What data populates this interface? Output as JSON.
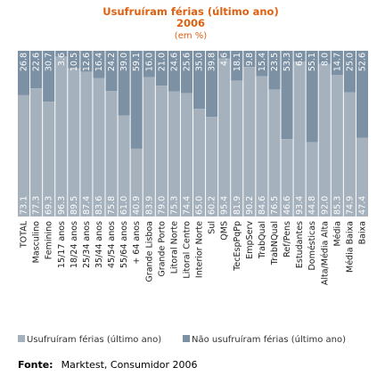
{
  "chart_data": {
    "type": "bar",
    "stacked": true,
    "orientation": "vertical",
    "title": "Usufruíram férias (último ano)",
    "subtitle": "2006",
    "unit_note": "(em %)",
    "categories": [
      "TOTAL",
      "Masculino",
      "Feminino",
      "15/17 anos",
      "18/24 anos",
      "25/34 anos",
      "35/44 anos",
      "45/54 anos",
      "55/64 anos",
      "+ 64 anos",
      "Grande Lisboa",
      "Grande Porto",
      "Litoral Norte",
      "Litoral Centro",
      "Interior Norte",
      "Sul",
      "QMS",
      "TecEspPqPp",
      "EmpServ",
      "TrabQual",
      "TrabNQual",
      "Ref/Pens",
      "Estudantes",
      "Domésticas",
      "Alta/Média Alta",
      "Média",
      "Média Baixa",
      "Baixa"
    ],
    "series": [
      {
        "name": "Usufruíram férias (último ano)",
        "color": "#a5b1bd",
        "values": [
          73.1,
          77.3,
          69.3,
          96.3,
          89.5,
          87.4,
          83.6,
          75.8,
          61.0,
          40.9,
          83.9,
          79.0,
          75.3,
          74.4,
          65.0,
          60.2,
          95.4,
          81.9,
          90.2,
          84.6,
          76.5,
          46.6,
          93.4,
          44.8,
          92.0,
          85.3,
          74.9,
          47.4
        ]
      },
      {
        "name": "Não usufruíram férias (último ano)",
        "color": "#7d91a5",
        "values": [
          26.8,
          22.6,
          30.7,
          3.6,
          10.5,
          12.6,
          16.4,
          24.2,
          39.0,
          59.1,
          16.0,
          21.0,
          24.6,
          25.6,
          35.0,
          39.8,
          4.6,
          18.1,
          9.8,
          15.4,
          23.5,
          53.3,
          6.6,
          55.1,
          8.0,
          14.7,
          25.0,
          52.6
        ]
      }
    ],
    "value_labels": {
      "bottom": [
        "73.1",
        "77.3",
        "69.3",
        "96.3",
        "89.5",
        "87.4",
        "83.6",
        "75.8",
        "61.0",
        "40.9",
        "83.9",
        "79.0",
        "75.3",
        "74.4",
        "65.0",
        "60.2",
        "95.4",
        "81.9",
        "90.2",
        "84.6",
        "76.5",
        "46.6",
        "93.4",
        "44.8",
        "92.0",
        "85.3",
        "74.9",
        "47.4"
      ],
      "top": [
        "26.8",
        "22.6",
        "30.7",
        "3.6",
        "10.5",
        "12.6",
        "16.4",
        "24.2",
        "39.0",
        "59.1",
        "16.0",
        "21.0",
        "24.6",
        "25.6",
        "35.0",
        "39.8",
        "4.6",
        "18.1",
        "9.8",
        "15.4",
        "23.5",
        "53.3",
        "6.6",
        "55.1",
        "8.0",
        "14.7",
        "25.0",
        "52.6"
      ]
    },
    "ylim": [
      0,
      100
    ],
    "grid": false,
    "legend_position": "bottom"
  },
  "colors": {
    "title": "#e06010",
    "subtitle": "#e06010",
    "series_bottom": "#a5b1bd",
    "series_top": "#7d91a5"
  },
  "source": {
    "label": "Fonte:",
    "text": "Marktest, Consumidor 2006"
  }
}
